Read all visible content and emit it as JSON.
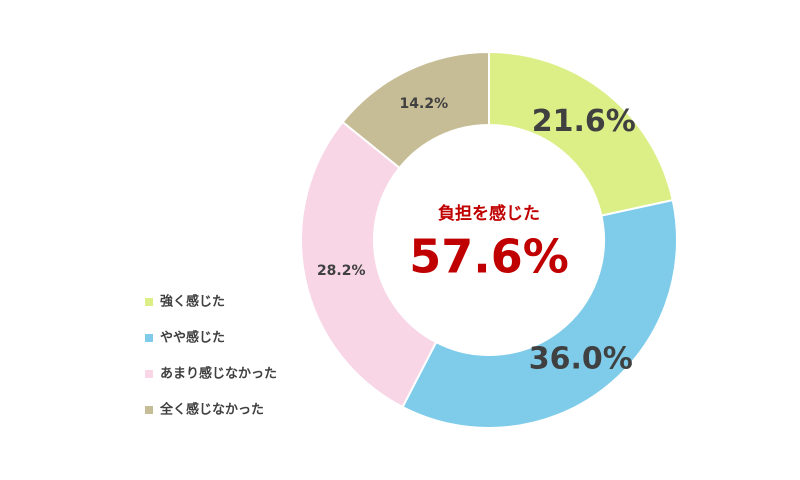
{
  "chart_data": {
    "type": "donut",
    "center_title": "負担を感じた",
    "center_value_label": "57.6%",
    "categories": [
      "強く感じた",
      "やや感じた",
      "あまり感じなかった",
      "全く感じなかった"
    ],
    "values": [
      21.6,
      36.0,
      28.2,
      14.2
    ],
    "value_labels": [
      "21.6%",
      "36.0%",
      "28.2%",
      "14.2%"
    ],
    "colors": [
      "#dcee86",
      "#7ecbea",
      "#f8d6e5",
      "#c6bd96"
    ],
    "legend": "left"
  }
}
